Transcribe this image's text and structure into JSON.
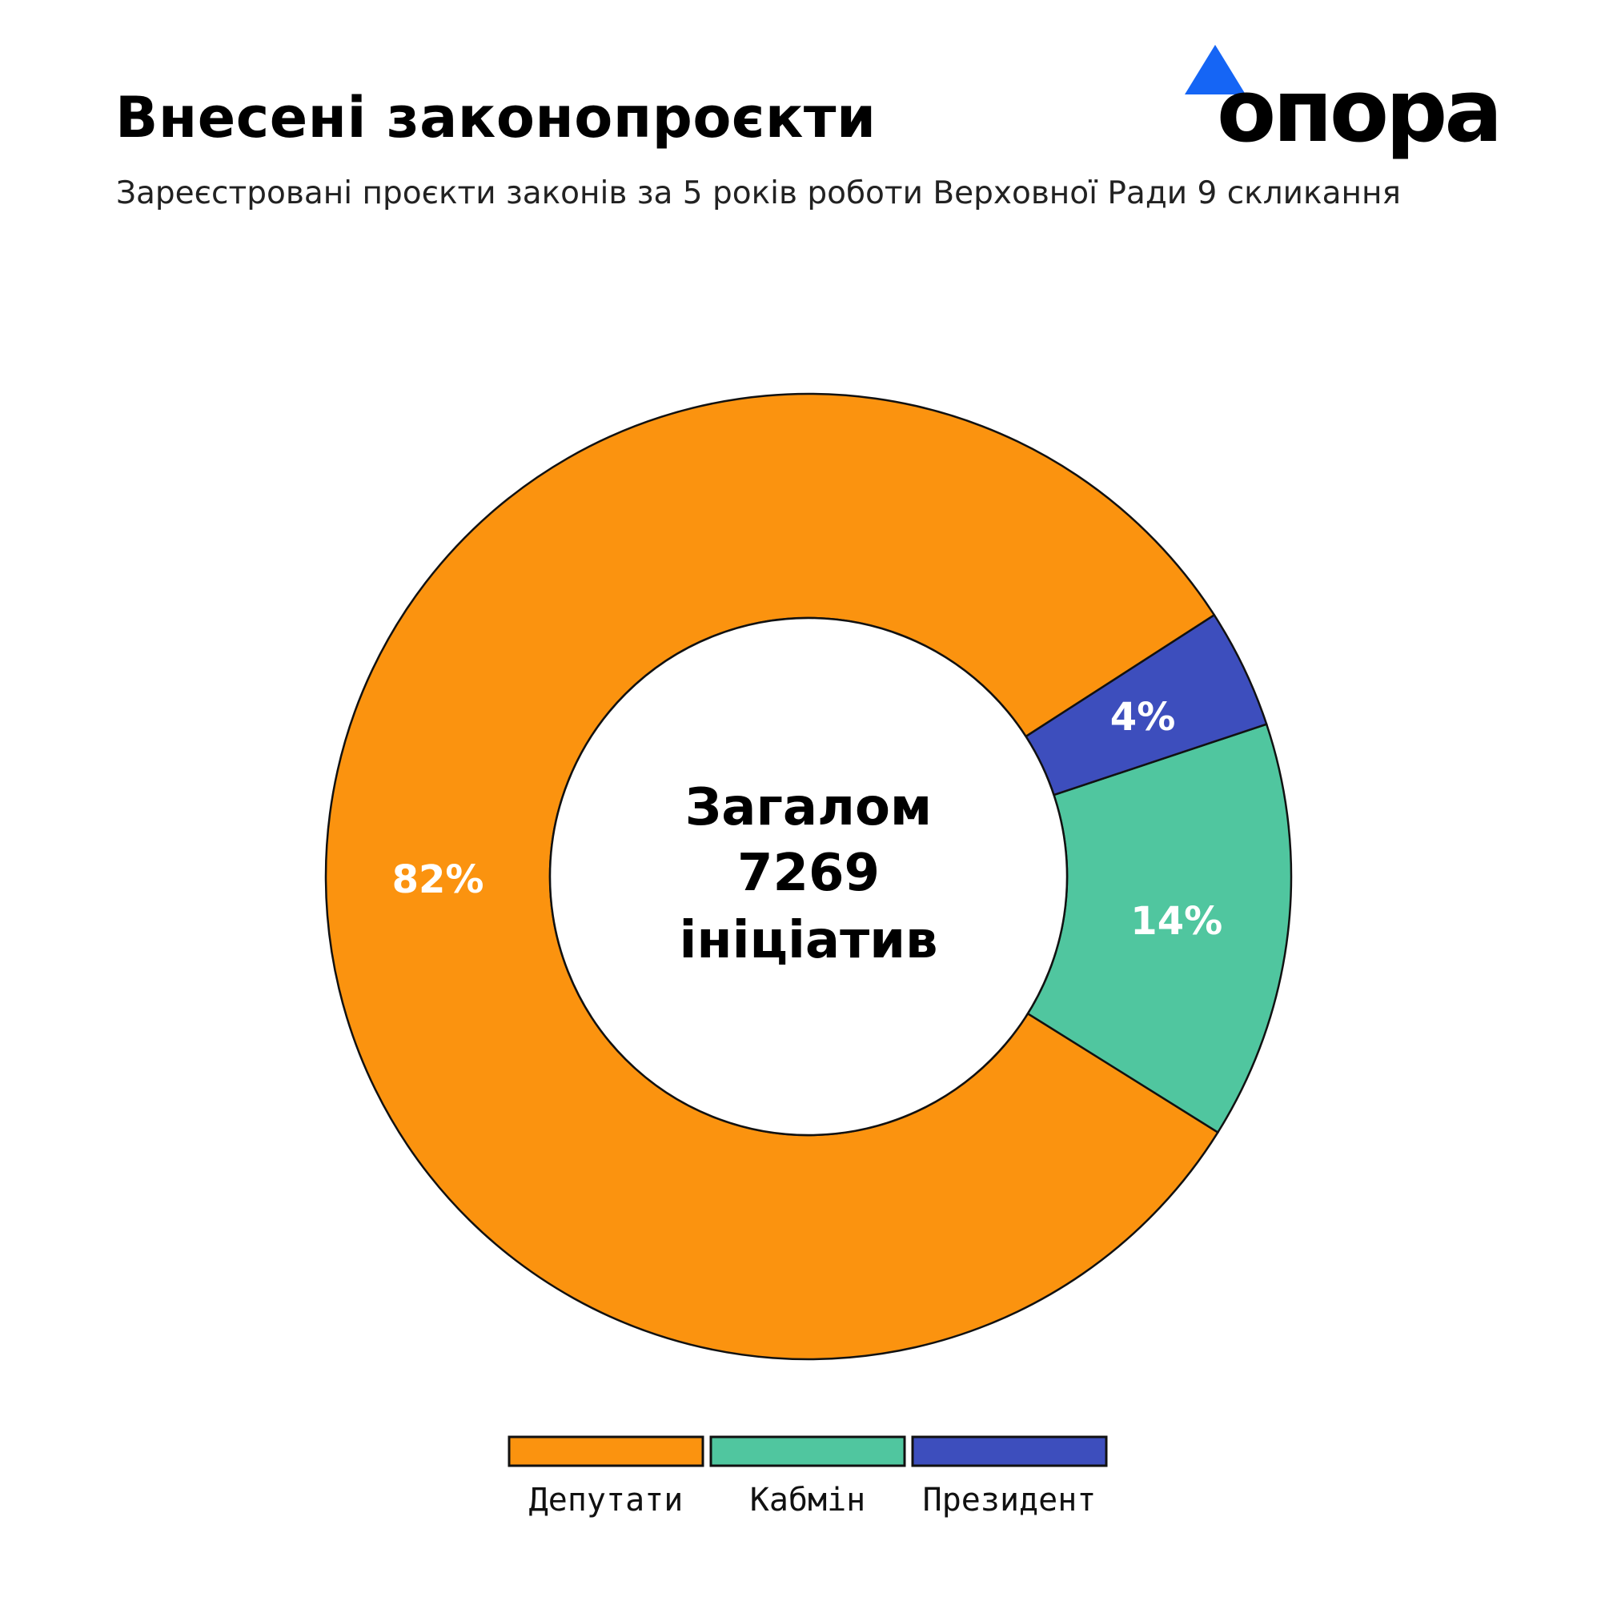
{
  "header": {
    "title": "Внесені законопроєкти",
    "subtitle": "Зареєстровані проєкти законів за 5 років роботи Верховної Ради 9 скликання"
  },
  "logo": {
    "text": "опора",
    "triangle_color": "#1565f5"
  },
  "chart_data": {
    "type": "pie",
    "variant": "donut",
    "categories": [
      "Депутати",
      "Кабмін",
      "Президент"
    ],
    "values": [
      82,
      14,
      4
    ],
    "labels": [
      "82%",
      "14%",
      "4%"
    ],
    "colors": [
      "#fb930f",
      "#50c69f",
      "#3d4ebd"
    ],
    "center_text": [
      "Загалом",
      "7269",
      "ініціатив"
    ],
    "legend_position": "bottom"
  }
}
